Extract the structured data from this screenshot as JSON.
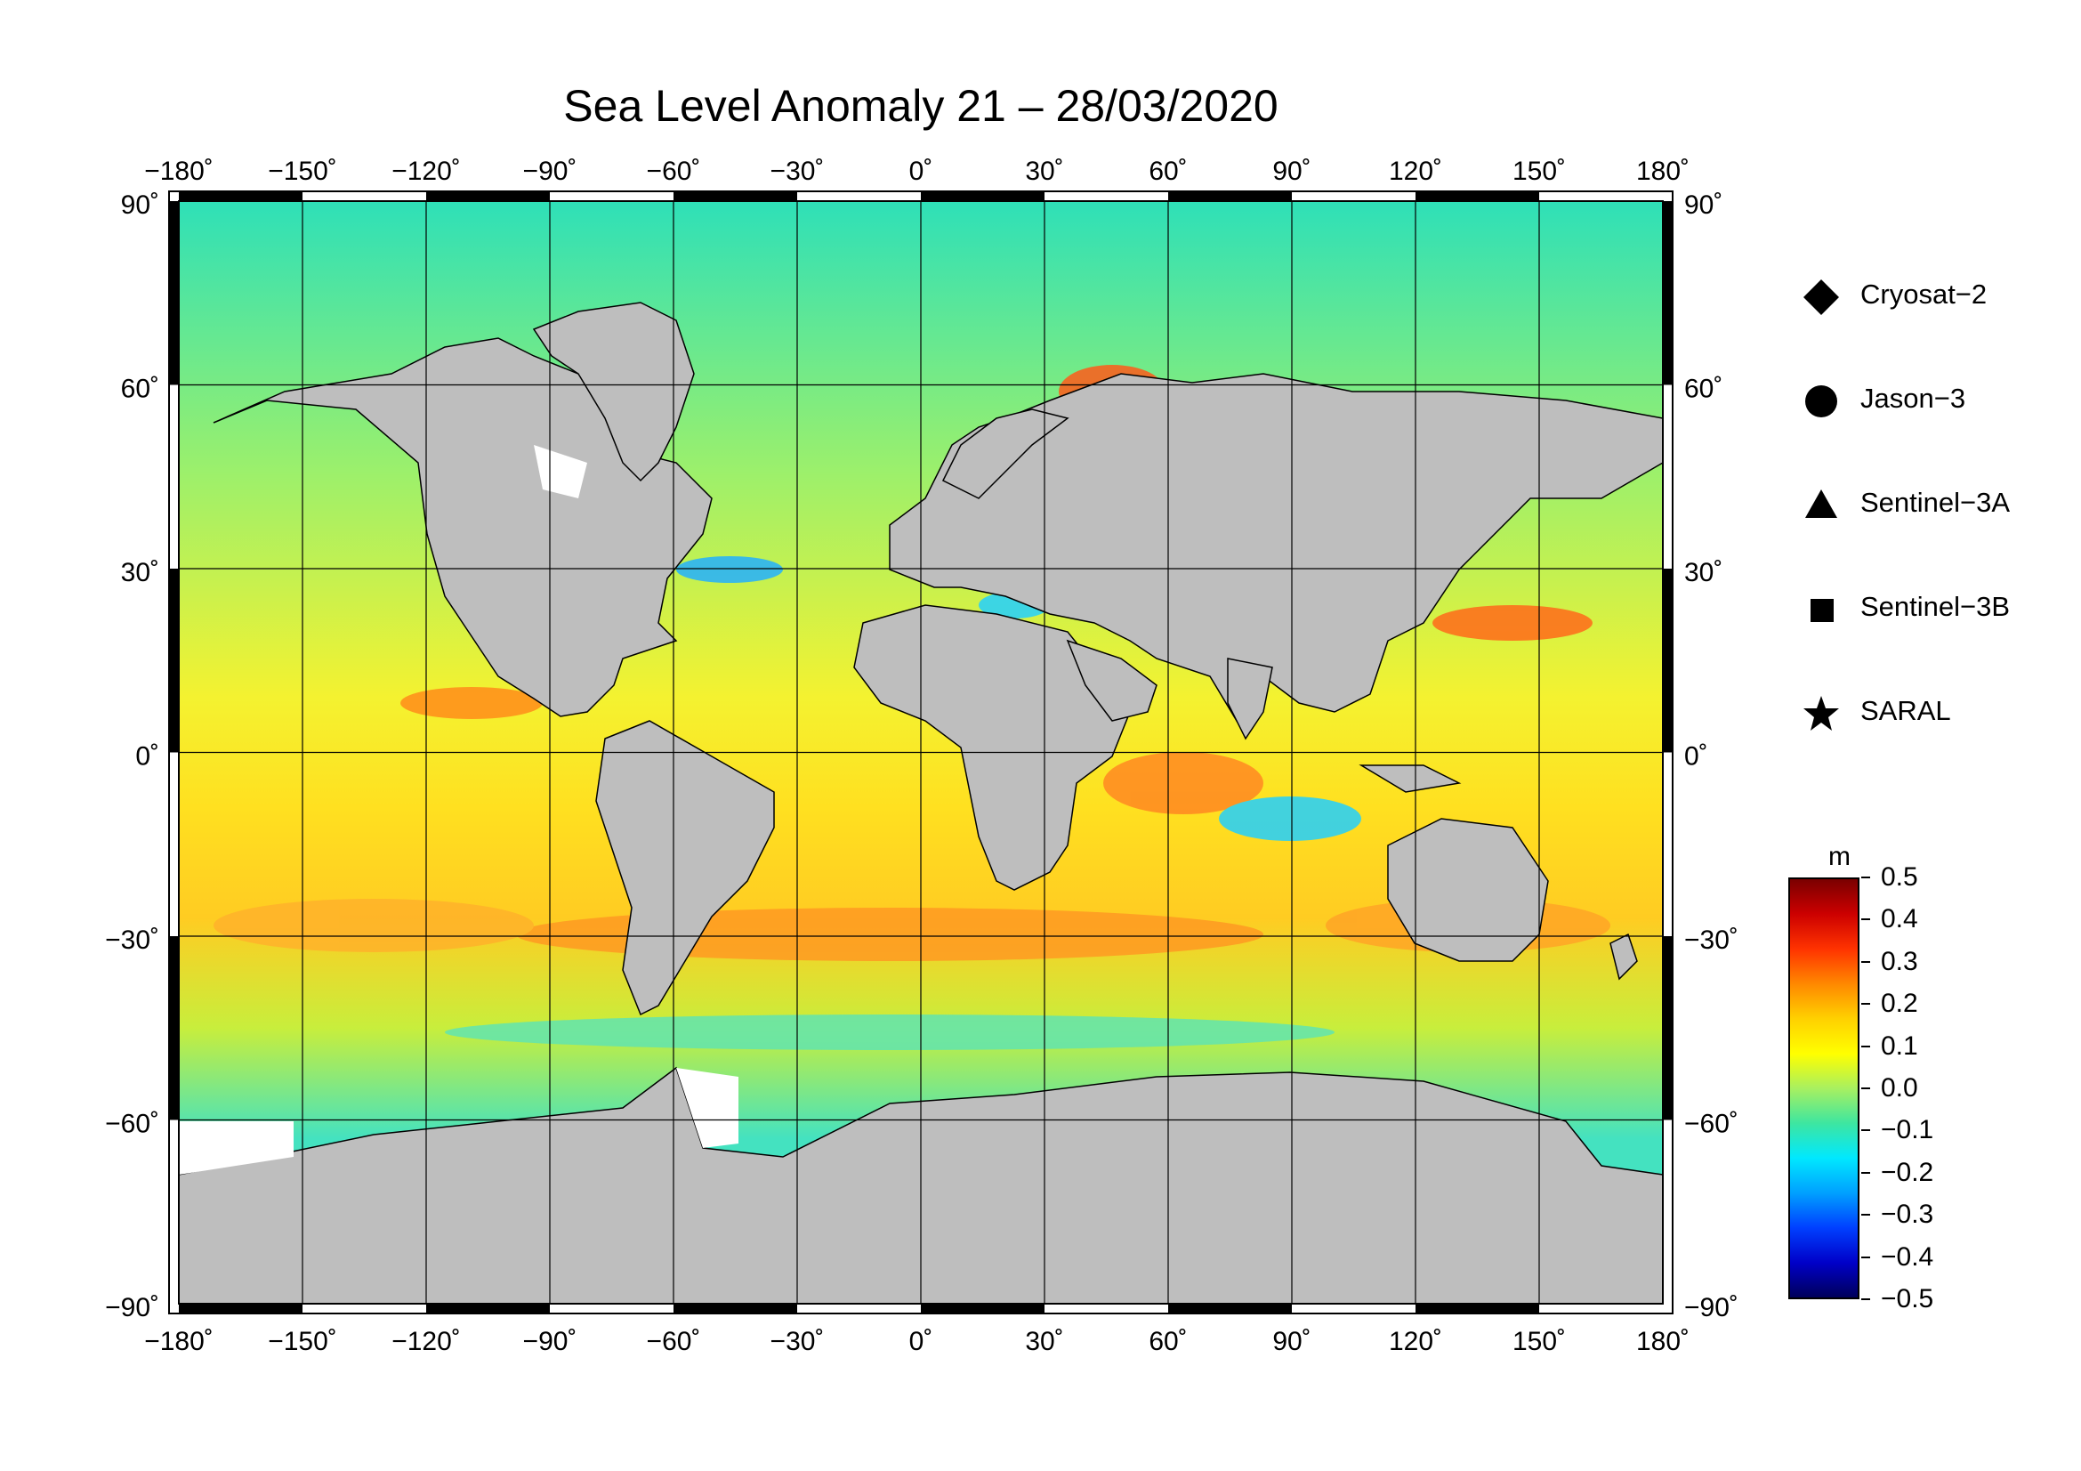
{
  "title": "Sea Level Anomaly 21 – 28/03/2020",
  "map": {
    "lon_ticks": [
      "−180˚",
      "−150˚",
      "−120˚",
      "−90˚",
      "−60˚",
      "−30˚",
      "0˚",
      "30˚",
      "60˚",
      "90˚",
      "120˚",
      "150˚",
      "180˚"
    ],
    "lat_ticks": [
      "90˚",
      "60˚",
      "30˚",
      "0˚",
      "−30˚",
      "−60˚",
      "−90˚"
    ],
    "land_color": "#bebebe",
    "ice_color": "#ffffff"
  },
  "legend": [
    {
      "symbol": "diamond",
      "label": "Cryosat−2"
    },
    {
      "symbol": "circle",
      "label": "Jason−3"
    },
    {
      "symbol": "triangle",
      "label": "Sentinel−3A"
    },
    {
      "symbol": "square",
      "label": "Sentinel−3B"
    },
    {
      "symbol": "star",
      "label": "SARAL"
    }
  ],
  "colorbar": {
    "unit": "m",
    "ticks": [
      "0.5",
      "0.4",
      "0.3",
      "0.2",
      "0.1",
      "0.0",
      "−0.1",
      "−0.2",
      "−0.3",
      "−0.4",
      "−0.5"
    ],
    "colors": [
      "#7a0000",
      "#cc0000",
      "#ff3300",
      "#ff8800",
      "#ffd000",
      "#ffff00",
      "#a8f060",
      "#3ee6a0",
      "#00e8ff",
      "#00a0ff",
      "#0040ff",
      "#0000c8",
      "#00005a"
    ]
  }
}
